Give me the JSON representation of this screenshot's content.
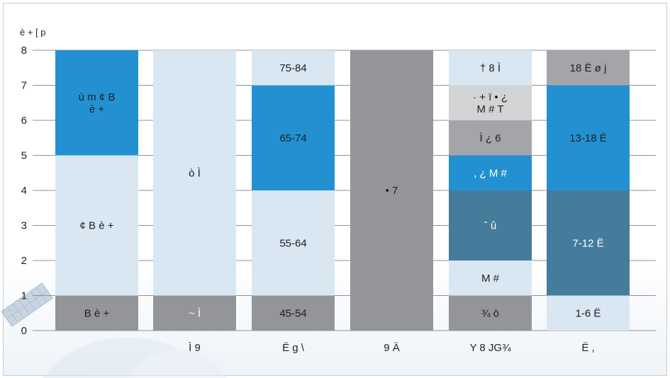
{
  "chart_data": {
    "type": "bar",
    "stacked": true,
    "ylabel": "è + [ p",
    "ylim": [
      0,
      8
    ],
    "yticks": [
      "0",
      "1",
      "2",
      "3",
      "4",
      "5",
      "6",
      "7",
      "8"
    ],
    "grid": true,
    "categories": [
      "",
      "Ì 9",
      "Ë g \\",
      "9  Ä",
      "Y 8 JG¾",
      "Ë ,"
    ],
    "stacks": [
      {
        "segments": [
          {
            "from": 0,
            "to": 1,
            "label": "B  è +",
            "color": "#939598",
            "text_color": "#1f1f1f"
          },
          {
            "from": 1,
            "to": 5,
            "label": "¢ B  è +",
            "color": "#d9e7f3",
            "text_color": "#1f1f1f"
          },
          {
            "from": 5,
            "to": 8,
            "label": "ù m ¢ B\nè +",
            "color": "#2391d1",
            "text_color": "#1f1f1f"
          }
        ]
      },
      {
        "segments": [
          {
            "from": 0,
            "to": 1,
            "label": "~ Ì",
            "color": "#939598",
            "text_color": "#ffffff"
          },
          {
            "from": 1,
            "to": 8,
            "label": "ò Ì",
            "color": "#d9e7f3",
            "text_color": "#1f1f1f"
          }
        ]
      },
      {
        "segments": [
          {
            "from": 0,
            "to": 1,
            "label": "45-54",
            "color": "#939598",
            "text_color": "#1f1f1f"
          },
          {
            "from": 1,
            "to": 4,
            "label": "55-64",
            "color": "#d9e7f3",
            "text_color": "#1f1f1f"
          },
          {
            "from": 4,
            "to": 7,
            "label": "65-74",
            "color": "#2391d1",
            "text_color": "#1f1f1f"
          },
          {
            "from": 7,
            "to": 8,
            "label": "75-84",
            "color": "#d9e7f3",
            "text_color": "#1f1f1f"
          }
        ]
      },
      {
        "segments": [
          {
            "from": 0,
            "to": 8,
            "label": "• 7",
            "color": "#939598",
            "text_color": "#1f1f1f"
          }
        ]
      },
      {
        "segments": [
          {
            "from": 0,
            "to": 1,
            "label": "¾ ö",
            "color": "#939598",
            "text_color": "#1f1f1f"
          },
          {
            "from": 1,
            "to": 2,
            "label": "M #",
            "color": "#d9e7f3",
            "text_color": "#1f1f1f"
          },
          {
            "from": 2,
            "to": 4,
            "label": "ˆ û",
            "color": "#457b9b",
            "text_color": "#ffffff"
          },
          {
            "from": 4,
            "to": 5,
            "label": ",  ¿ M #",
            "color": "#2391d1",
            "text_color": "#ffffff"
          },
          {
            "from": 5,
            "to": 6,
            "label": "Ì  ¿ 6",
            "color": "#a3a5a8",
            "text_color": "#1f1f1f"
          },
          {
            "from": 6,
            "to": 7,
            "label": "· + ï • ¿\nM # T",
            "color": "#d1d3d4",
            "text_color": "#1f1f1f"
          },
          {
            "from": 7,
            "to": 8,
            "label": "† 8 Ì",
            "color": "#d9e7f3",
            "text_color": "#1f1f1f"
          }
        ]
      },
      {
        "segments": [
          {
            "from": 0,
            "to": 1,
            "label": "1-6 Ë",
            "color": "#d9e7f3",
            "text_color": "#1f1f1f"
          },
          {
            "from": 1,
            "to": 4,
            "label": "7-12 Ë",
            "color": "#457b9b",
            "text_color": "#ffffff"
          },
          {
            "from": 4,
            "to": 7,
            "label": "13-18 Ë",
            "color": "#2391d1",
            "text_color": "#1f1f1f"
          },
          {
            "from": 7,
            "to": 8,
            "label": "18 Ë ø j",
            "color": "#a3a5a8",
            "text_color": "#1f1f1f"
          }
        ]
      }
    ]
  }
}
